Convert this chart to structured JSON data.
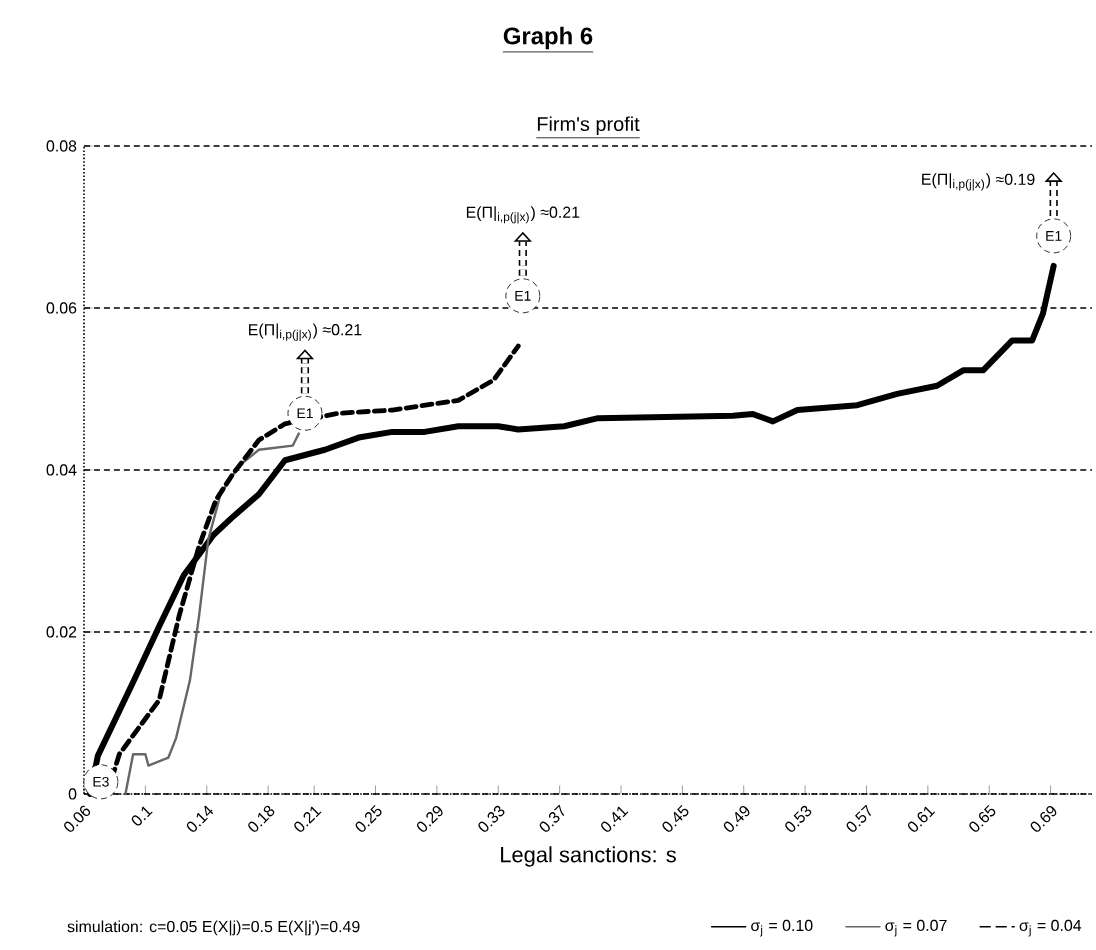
{
  "chart_data": {
    "type": "line",
    "title": "Graph 6",
    "subtitle": "Firm's profit",
    "xlabel": "Legal sanctions: s",
    "xlim": [
      0.06,
      0.717
    ],
    "ylim": [
      0,
      0.08
    ],
    "xticks": [
      0.06,
      0.1,
      0.14,
      0.18,
      0.21,
      0.25,
      0.29,
      0.33,
      0.37,
      0.41,
      0.45,
      0.49,
      0.53,
      0.57,
      0.61,
      0.65,
      0.69
    ],
    "yticks": [
      0,
      0.02,
      0.04,
      0.06,
      0.08
    ],
    "grid": "y",
    "legend": "bottom",
    "marker": "none",
    "series": [
      {
        "name": "σ$_{j}$ = 0.10",
        "color": "#000000",
        "line_style": "solid",
        "x": [
          0.064,
          0.069,
          0.0925,
          0.109,
          0.125,
          0.1445,
          0.1575,
          0.174,
          0.191,
          0.217,
          0.239,
          0.261,
          0.282,
          0.304,
          0.33,
          0.343,
          0.373,
          0.395,
          0.483,
          0.496,
          0.509,
          0.525,
          0.564,
          0.59,
          0.616,
          0.633,
          0.646,
          0.665,
          0.678,
          0.685,
          0.692
        ],
        "values": [
          0,
          0.0047,
          0.014,
          0.0207,
          0.027,
          0.032,
          0.0343,
          0.037,
          0.0412,
          0.0425,
          0.044,
          0.0447,
          0.0447,
          0.0454,
          0.0454,
          0.045,
          0.0454,
          0.0464,
          0.0467,
          0.0469,
          0.046,
          0.0474,
          0.048,
          0.0494,
          0.0504,
          0.0523,
          0.0523,
          0.056,
          0.056,
          0.0593,
          0.0652
        ]
      },
      {
        "name": "σ$_{j}$ = 0.07",
        "color": "#666666",
        "line_style": "solid",
        "x": [
          0.087,
          0.092,
          0.1,
          0.102,
          0.115,
          0.12,
          0.129,
          0.135,
          0.141,
          0.149,
          0.161,
          0.174,
          0.196,
          0.2
        ],
        "values": [
          0,
          0.0049,
          0.0049,
          0.0035,
          0.0045,
          0.0069,
          0.014,
          0.022,
          0.0314,
          0.037,
          0.0405,
          0.0425,
          0.043,
          0.0445
        ]
      },
      {
        "name": "σ$_{j}$ = 0.04",
        "color": "#000000",
        "line_style": "dashed",
        "x": [
          0.075,
          0.083,
          0.109,
          0.122,
          0.135,
          0.146,
          0.157,
          0.174,
          0.191,
          0.226,
          0.261,
          0.304,
          0.327,
          0.343
        ],
        "values": [
          0,
          0.0049,
          0.0116,
          0.022,
          0.0306,
          0.0363,
          0.0395,
          0.0437,
          0.0457,
          0.047,
          0.0474,
          0.0486,
          0.0511,
          0.0553
        ]
      }
    ],
    "annotations": [
      {
        "text": "E3",
        "x": 0.071,
        "y": 0.0015
      },
      {
        "text": "E1",
        "x": 0.204,
        "y": 0.047
      },
      "E(Π|$_{i,p(j|x)}$) ≈0.21",
      {
        "text": "E1",
        "x": 0.346,
        "y": 0.0615
      },
      "E(Π|$_{i,p(j|x)}$) ≈0.21",
      {
        "text": "E1",
        "x": 0.692,
        "y": 0.0689
      },
      "E(Π|$_{i,p(j|x)}$) ≈0.19",
      "simulation: c=0.05  E(X|j)=0.5  E(X|j')=0.49"
    ]
  }
}
